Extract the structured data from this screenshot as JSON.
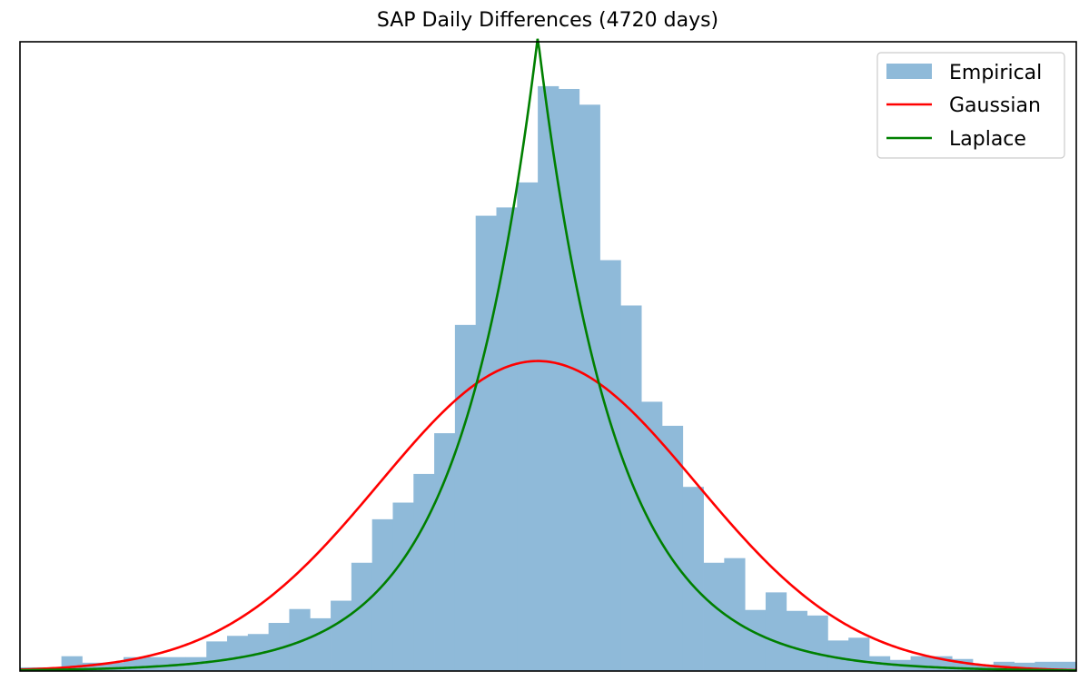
{
  "chart_data": {
    "type": "bar",
    "title": "SAP Daily Differences (4720 days)",
    "xlabel": "",
    "ylabel": "",
    "axes_ticks": "none",
    "ylim": [
      0,
      0.68
    ],
    "legend": {
      "placement": "top-right",
      "entries": [
        "Empirical",
        "Gaussian",
        "Laplace"
      ]
    },
    "colors": {
      "empirical": "#8fbad9",
      "gaussian": "#ff0000",
      "laplace": "#008000"
    },
    "bin_values": [
      0.004,
      0.004,
      0.016,
      0.009,
      0.009,
      0.015,
      0.015,
      0.015,
      0.015,
      0.032,
      0.038,
      0.04,
      0.052,
      0.067,
      0.057,
      0.076,
      0.117,
      0.164,
      0.182,
      0.213,
      0.257,
      0.374,
      0.492,
      0.501,
      0.528,
      0.632,
      0.629,
      0.612,
      0.444,
      0.395,
      0.291,
      0.265,
      0.199,
      0.117,
      0.122,
      0.066,
      0.085,
      0.065,
      0.06,
      0.033,
      0.036,
      0.016,
      0.012,
      0.016,
      0.016,
      0.013,
      0.007,
      0.01,
      0.009,
      0.01,
      0.01
    ],
    "series": [
      {
        "name": "Empirical",
        "kind": "histogram",
        "values": [
          0.004,
          0.004,
          0.016,
          0.009,
          0.009,
          0.015,
          0.015,
          0.015,
          0.015,
          0.032,
          0.038,
          0.04,
          0.052,
          0.067,
          0.057,
          0.076,
          0.117,
          0.164,
          0.182,
          0.213,
          0.257,
          0.374,
          0.492,
          0.501,
          0.528,
          0.632,
          0.629,
          0.612,
          0.444,
          0.395,
          0.291,
          0.265,
          0.199,
          0.117,
          0.122,
          0.066,
          0.085,
          0.065,
          0.06,
          0.033,
          0.036,
          0.016,
          0.012,
          0.016,
          0.016,
          0.013,
          0.007,
          0.01,
          0.009,
          0.01,
          0.01
        ]
      },
      {
        "name": "Gaussian",
        "kind": "curve",
        "peak": 0.335,
        "center_bin": 25.0,
        "sigma_bins": 7.64
      },
      {
        "name": "Laplace",
        "kind": "curve",
        "peak": 0.685,
        "center_bin": 25.0,
        "scale_bins": 3.74
      }
    ]
  }
}
